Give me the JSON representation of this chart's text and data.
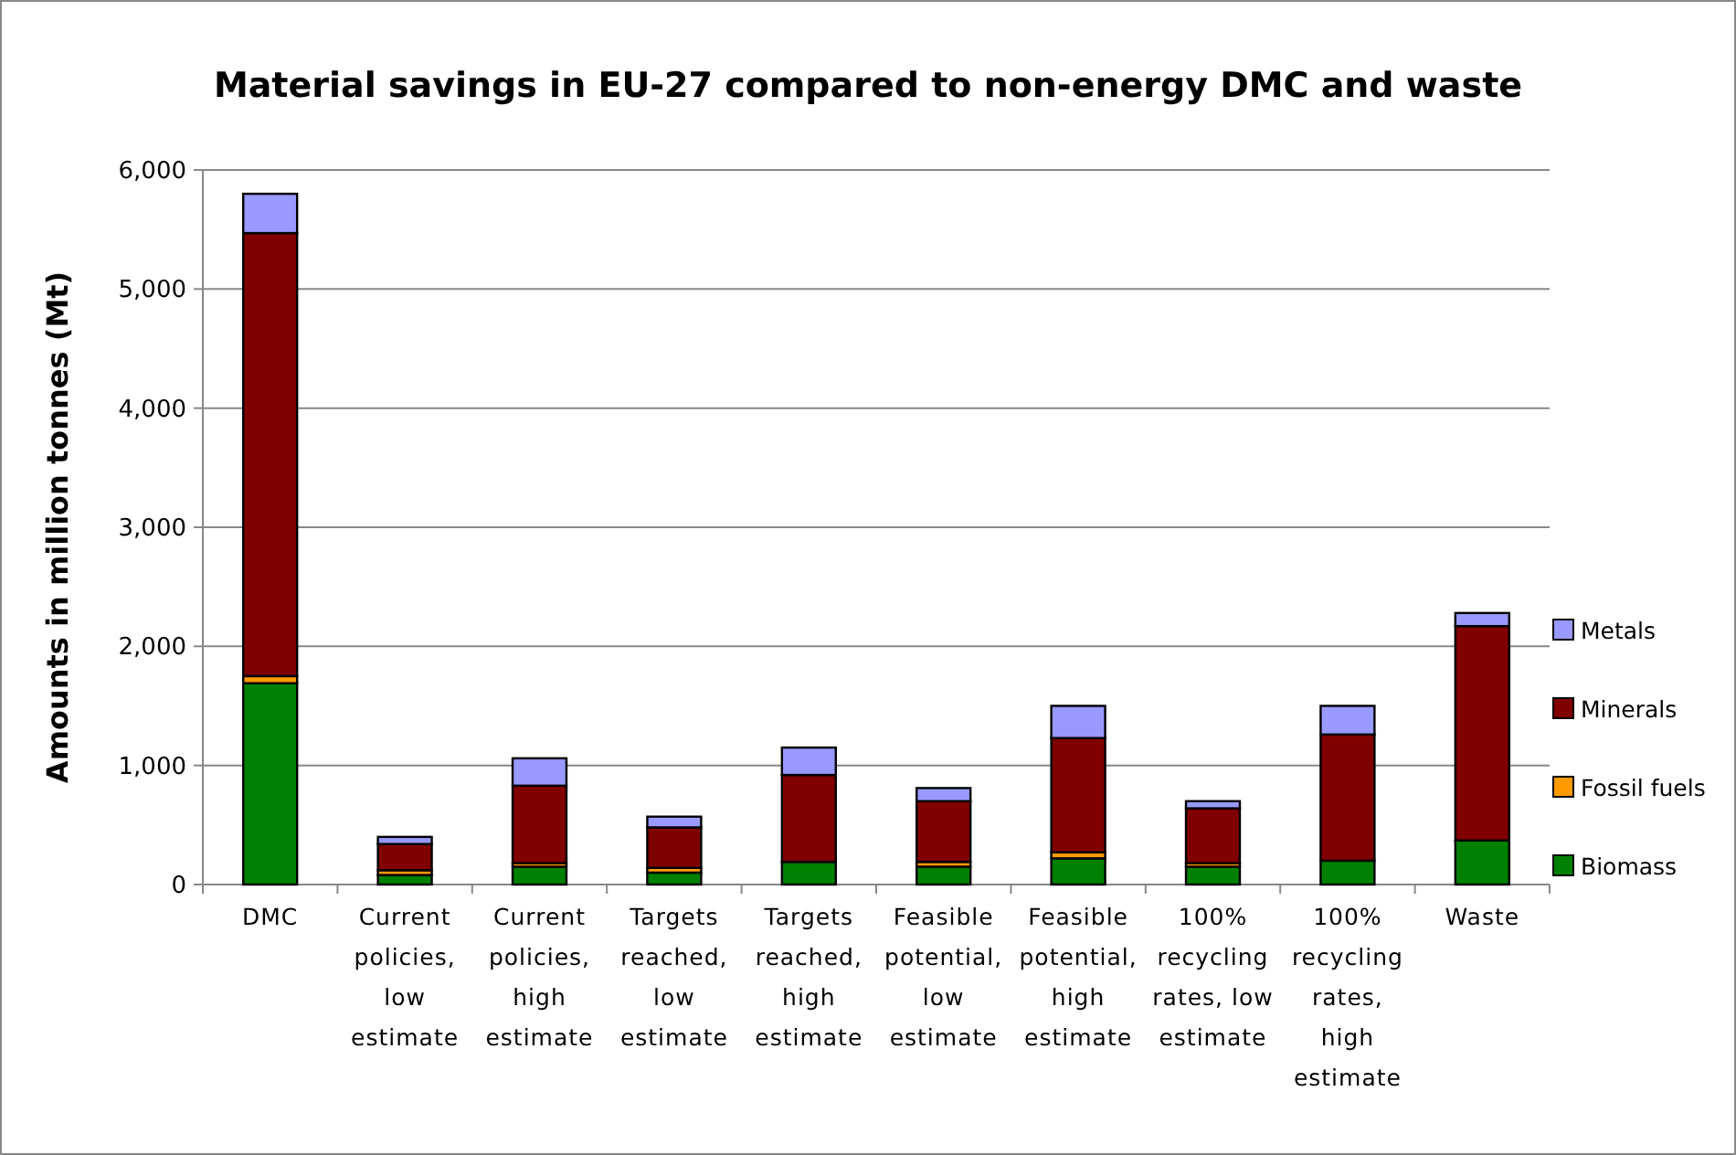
{
  "chart_data": {
    "type": "bar",
    "title": "Material savings in EU-27 compared to non-energy DMC and waste",
    "ylabel": "Amounts in million tonnes (Mt)",
    "categories": [
      "DMC",
      "Current policies, low estimate",
      "Current policies, high estimate",
      "Targets reached, low estimate",
      "Targets reached, high estimate",
      "Feasible potential, low estimate",
      "Feasible potential, high estimate",
      "100% recycling rates, low estimate",
      "100% recycling rates, high estimate",
      "Waste"
    ],
    "stacked": true,
    "series": [
      {
        "name": "Biomass",
        "color": "#008000",
        "values": [
          1690,
          80,
          150,
          100,
          190,
          150,
          220,
          150,
          200,
          370
        ]
      },
      {
        "name": "Fossil fuels",
        "color": "#ff9900",
        "values": [
          60,
          40,
          30,
          40,
          null,
          40,
          50,
          30,
          null,
          null
        ]
      },
      {
        "name": "Minerals",
        "color": "#800000",
        "values": [
          3720,
          220,
          650,
          340,
          730,
          510,
          960,
          460,
          1060,
          1800
        ]
      },
      {
        "name": "Metals",
        "color": "#9999ff",
        "values": [
          330,
          60,
          230,
          90,
          230,
          110,
          270,
          60,
          240,
          110
        ]
      }
    ],
    "ylim": [
      0,
      6000
    ],
    "yticks": [
      {
        "value": 0,
        "label": "0"
      },
      {
        "value": 1000,
        "label": "1,000"
      },
      {
        "value": 2000,
        "label": "2,000"
      },
      {
        "value": 3000,
        "label": "3,000"
      },
      {
        "value": 4000,
        "label": "4,000"
      },
      {
        "value": 5000,
        "label": "5,000"
      },
      {
        "value": 6000,
        "label": "6,000"
      }
    ],
    "grid": "y",
    "legend": "right"
  }
}
